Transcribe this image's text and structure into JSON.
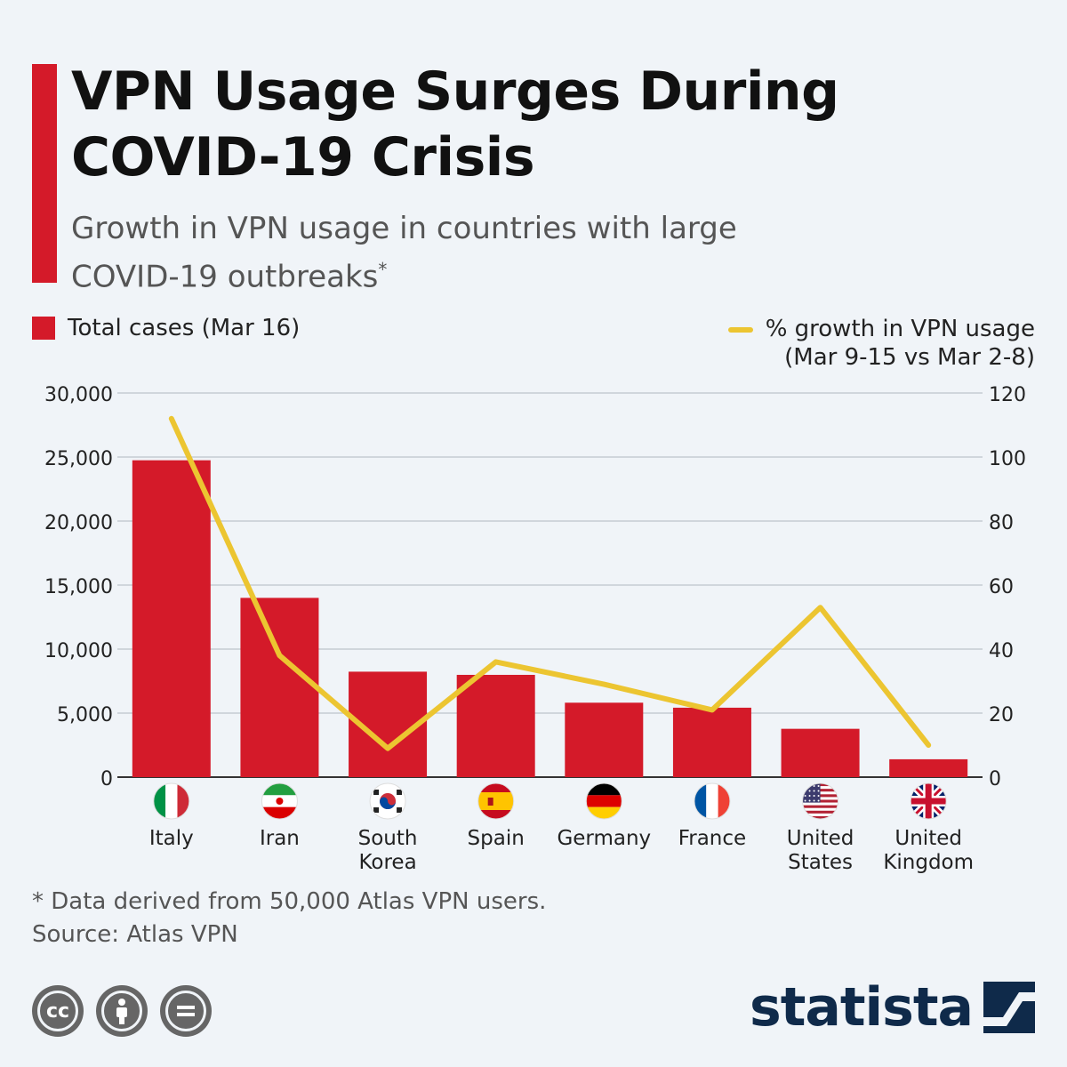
{
  "header": {
    "title": "VPN Usage Surges During COVID-19 Crisis",
    "subtitle": "Growth in VPN usage in countries with large COVID-19 outbreaks",
    "subtitle_mark": "*"
  },
  "legend": {
    "bars_label": "Total cases (Mar 16)",
    "line_label_1": "% growth in VPN usage",
    "line_label_2": "(Mar 9-15 vs Mar 2-8)"
  },
  "colors": {
    "bar": "#d41a29",
    "line": "#ecc531",
    "accent": "#d41a29",
    "brand": "#0f2a4a"
  },
  "chart_data": {
    "type": "bar",
    "categories": [
      "Italy",
      "Iran",
      "South Korea",
      "Spain",
      "Germany",
      "France",
      "United States",
      "United Kingdom"
    ],
    "category_lines": [
      [
        "Italy"
      ],
      [
        "Iran"
      ],
      [
        "South",
        "Korea"
      ],
      [
        "Spain"
      ],
      [
        "Germany"
      ],
      [
        "France"
      ],
      [
        "United",
        "States"
      ],
      [
        "United",
        "Kingdom"
      ]
    ],
    "flag_icons": [
      "italy-flag-icon",
      "iran-flag-icon",
      "south-korea-flag-icon",
      "spain-flag-icon",
      "germany-flag-icon",
      "france-flag-icon",
      "united-states-flag-icon",
      "united-kingdom-flag-icon"
    ],
    "series": [
      {
        "name": "Total cases (Mar 16)",
        "type": "bar",
        "axis": "left",
        "values": [
          24747,
          14000,
          8236,
          7988,
          5813,
          5423,
          3774,
          1395
        ]
      },
      {
        "name": "% growth in VPN usage",
        "type": "line",
        "axis": "right",
        "values": [
          112,
          38,
          9,
          36,
          29,
          21,
          53,
          10
        ]
      }
    ],
    "y_left": {
      "range": [
        0,
        30000
      ],
      "ticks": [
        "0",
        "5,000",
        "10,000",
        "15,000",
        "20,000",
        "25,000",
        "30,000"
      ]
    },
    "y_right": {
      "range": [
        0,
        120
      ],
      "ticks": [
        "0",
        "20",
        "40",
        "60",
        "80",
        "100",
        "120"
      ]
    },
    "grid": true,
    "legend": "top"
  },
  "footer": {
    "note": "* Data derived from 50,000 Atlas VPN users.",
    "source": "Source: Atlas VPN",
    "license_icons": [
      "cc-icon",
      "attribution-icon",
      "no-derivatives-icon"
    ],
    "brand": "statista"
  }
}
